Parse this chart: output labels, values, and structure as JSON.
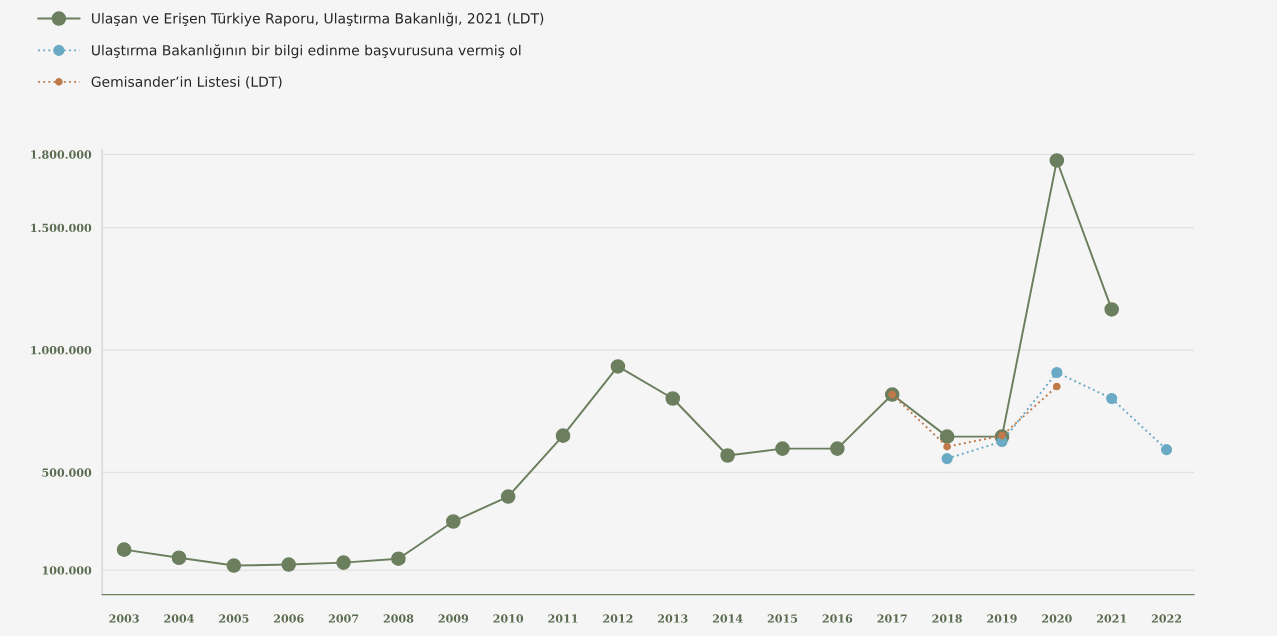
{
  "chart_data": {
    "type": "line",
    "categories": [
      "2003",
      "2004",
      "2005",
      "2006",
      "2007",
      "2008",
      "2009",
      "2010",
      "2011",
      "2012",
      "2013",
      "2014",
      "2015",
      "2016",
      "2017",
      "2018",
      "2019",
      "2020",
      "2021",
      "2022"
    ],
    "series": [
      {
        "name": "Ulaşan ve Erişen Türkiye Raporu, Ulaştırma Bakanlığı, 2021 (LDT)",
        "color": "#6b7f5e",
        "line_style": "solid",
        "values": [
          184000,
          151000,
          119000,
          123000,
          131000,
          147000,
          299000,
          401000,
          650000,
          933000,
          802000,
          569000,
          597000,
          597000,
          818000,
          646000,
          646000,
          1775000,
          1166000,
          null
        ]
      },
      {
        "name": "Ulaştırma Bakanlığının bir bilgi edinme başvurusuna vermiş ol",
        "color": "#6aaac4",
        "line_style": "dotted",
        "values": [
          null,
          null,
          null,
          null,
          null,
          null,
          null,
          null,
          null,
          null,
          null,
          null,
          null,
          null,
          null,
          556000,
          626000,
          908000,
          802000,
          593000
        ]
      },
      {
        "name": "Gemisander’in Listesi (LDT)",
        "color": "#c07a4a",
        "line_style": "dotted",
        "values": [
          null,
          null,
          null,
          null,
          null,
          null,
          null,
          null,
          null,
          null,
          null,
          null,
          null,
          null,
          818000,
          605000,
          650000,
          851000,
          null,
          null
        ]
      }
    ],
    "ylim": [
      0,
      1820000
    ],
    "yticks": [
      {
        "value": 100000,
        "label": "100.000"
      },
      {
        "value": 500000,
        "label": "500.000"
      },
      {
        "value": 1000000,
        "label": "1.000.000"
      },
      {
        "value": 1500000,
        "label": "1.500.000"
      },
      {
        "value": 1800000,
        "label": "1.800.000"
      }
    ],
    "grid": "y",
    "legend": "top left",
    "marker": "circle"
  }
}
